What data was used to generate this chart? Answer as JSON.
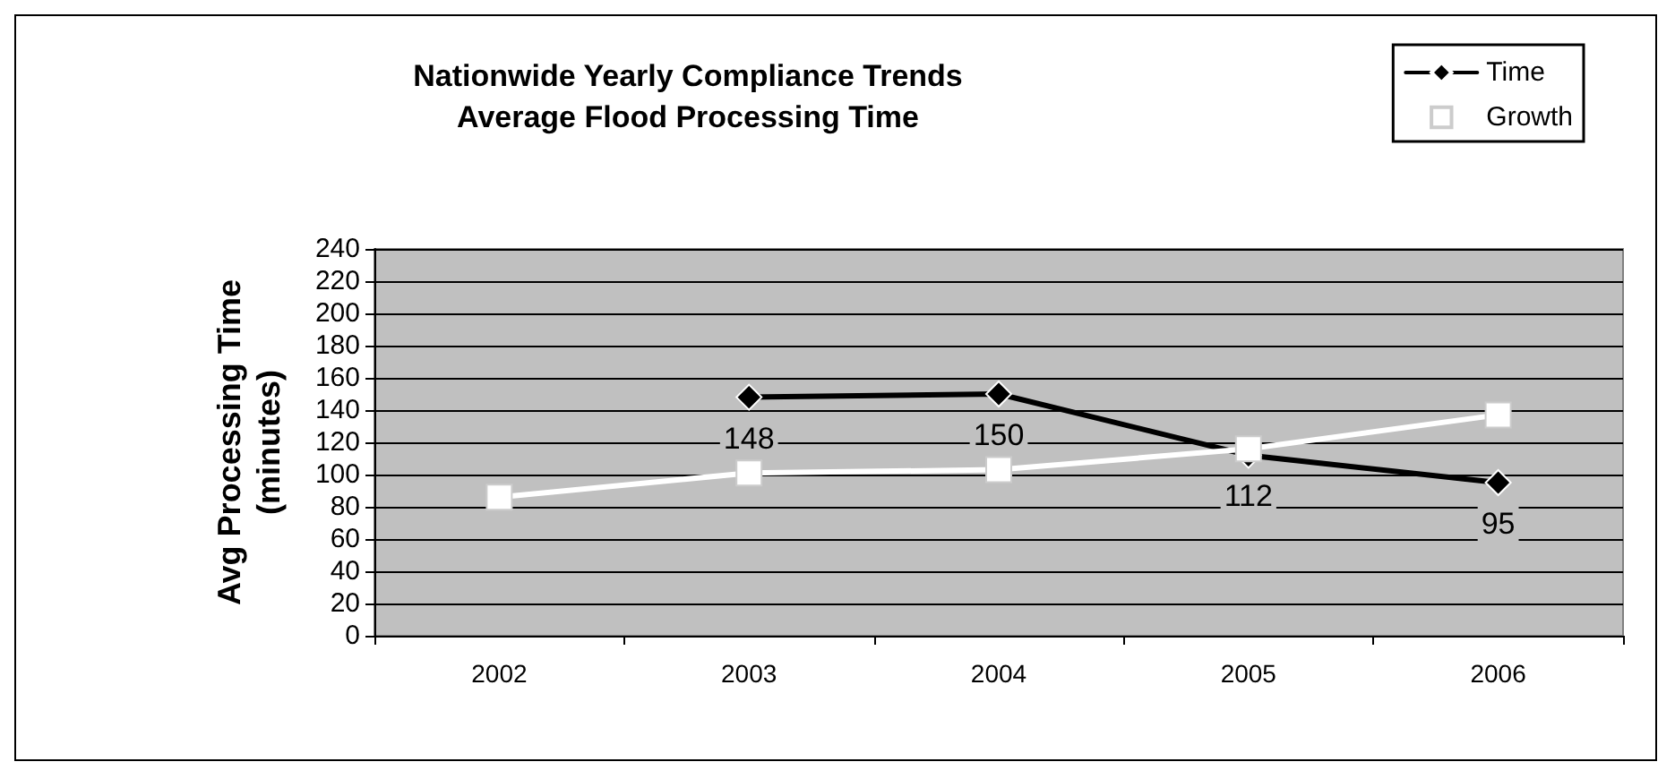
{
  "chart_data": {
    "type": "line",
    "title": "Nationwide Yearly Compliance Trends",
    "subtitle": "Average Flood Processing Time",
    "ylabel": "Avg Processing Time\n(minutes)",
    "categories": [
      "2002",
      "2003",
      "2004",
      "2005",
      "2006"
    ],
    "series": [
      {
        "name": "Time",
        "color": "#000000",
        "marker": "diamond",
        "values": [
          null,
          148,
          150,
          112,
          95
        ],
        "value_labels": [
          null,
          "148",
          "150",
          "112",
          "95"
        ]
      },
      {
        "name": "Growth",
        "color": "#ffffff",
        "marker": "square",
        "values": [
          86,
          101,
          103,
          116,
          137
        ]
      }
    ],
    "ylim": [
      0,
      240
    ],
    "yticks": [
      0,
      20,
      40,
      60,
      80,
      100,
      120,
      140,
      160,
      180,
      200,
      220,
      240
    ],
    "grid": "y",
    "legend": "top right"
  }
}
